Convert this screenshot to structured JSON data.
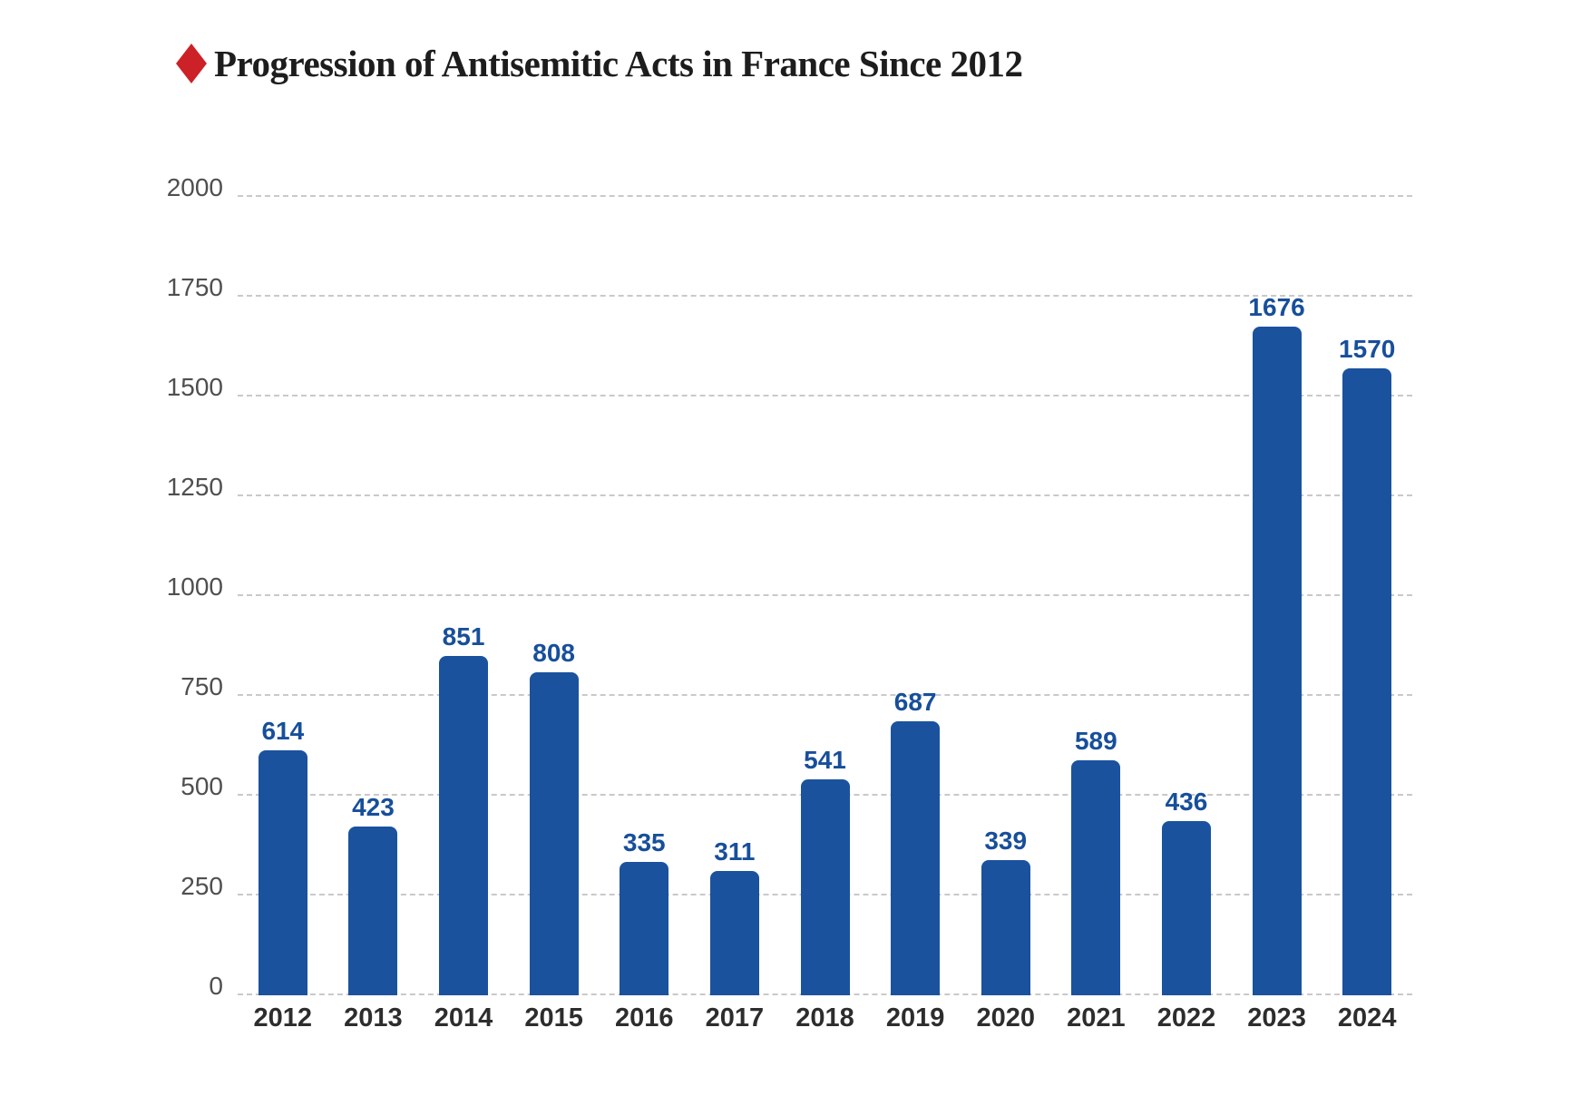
{
  "header": {
    "bullet_icon": "red-diamond",
    "bullet_color": "#cc2127"
  },
  "chart_data": {
    "type": "bar",
    "title": "Progression of Antisemitic Acts in France Since 2012",
    "categories": [
      "2012",
      "2013",
      "2014",
      "2015",
      "2016",
      "2017",
      "2018",
      "2019",
      "2020",
      "2021",
      "2022",
      "2023",
      "2024"
    ],
    "values": [
      614,
      423,
      851,
      808,
      335,
      311,
      541,
      687,
      339,
      589,
      436,
      1676,
      1570
    ],
    "xlabel": "",
    "ylabel": "",
    "ylim": [
      0,
      2000
    ],
    "y_ticks": [
      0,
      250,
      500,
      750,
      1000,
      1250,
      1500,
      1750,
      2000
    ],
    "grid": "horizontal-dashed",
    "legend_position": "none",
    "bar_color": "#1a529e",
    "value_label_color": "#174f9b",
    "y_axis_label_color": "#4f4f4f",
    "x_axis_label_color": "#2d2d2d",
    "gridline_color": "#c9c9c9"
  }
}
